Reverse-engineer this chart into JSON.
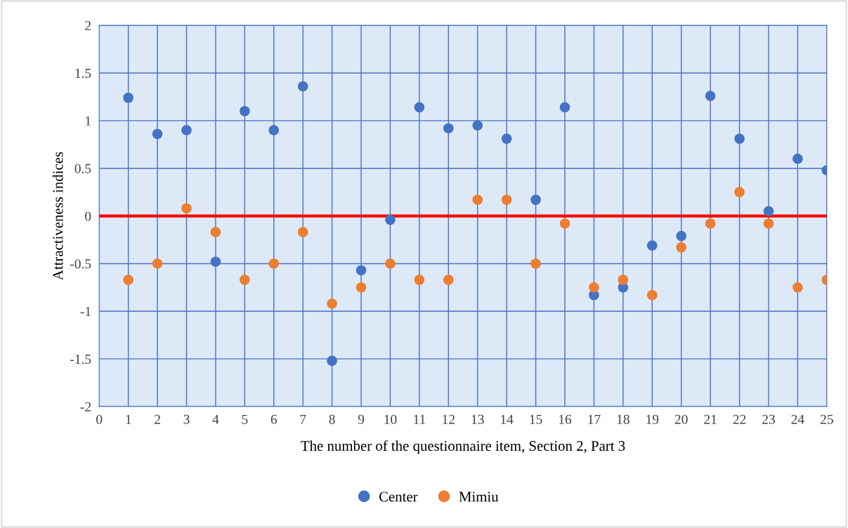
{
  "chart_data": {
    "type": "scatter",
    "xlabel": "The number of the questionnaire item, Section 2, Part 3",
    "ylabel": "Attractiveness indices",
    "x": [
      1,
      2,
      3,
      4,
      5,
      6,
      7,
      8,
      9,
      10,
      11,
      12,
      13,
      14,
      15,
      16,
      17,
      18,
      19,
      20,
      21,
      22,
      23,
      24,
      25
    ],
    "series": [
      {
        "name": "Center",
        "color": "#4472c4",
        "values": [
          1.24,
          0.86,
          0.9,
          -0.48,
          1.1,
          0.9,
          1.36,
          -1.52,
          -0.57,
          -0.04,
          1.14,
          0.92,
          0.95,
          0.81,
          0.17,
          1.14,
          -0.83,
          -0.75,
          -0.31,
          -0.21,
          1.26,
          0.81,
          0.05,
          0.6,
          0.48
        ]
      },
      {
        "name": "Mimiu",
        "color": "#ed7d31",
        "values": [
          -0.67,
          -0.5,
          0.08,
          -0.17,
          -0.67,
          -0.5,
          -0.17,
          -0.92,
          -0.75,
          -0.5,
          -0.67,
          -0.67,
          0.17,
          0.17,
          -0.5,
          -0.08,
          -0.75,
          -0.67,
          -0.83,
          -0.33,
          -0.08,
          0.25,
          -0.08,
          -0.75,
          -0.67
        ]
      }
    ],
    "xlim": [
      0,
      25
    ],
    "xticks": [
      0,
      1,
      2,
      3,
      4,
      5,
      6,
      7,
      8,
      9,
      10,
      11,
      12,
      13,
      14,
      15,
      16,
      17,
      18,
      19,
      20,
      21,
      22,
      23,
      24,
      25
    ],
    "ylim": [
      -2,
      2
    ],
    "yticks": [
      -2,
      -1.5,
      -1,
      -0.5,
      0,
      0.5,
      1,
      1.5,
      2
    ],
    "ref_lines": [
      {
        "axis": "y",
        "value": 0,
        "color": "#ff0000",
        "line_style": "solid"
      }
    ],
    "grid": true,
    "legend": "bottom",
    "marker": "circle"
  }
}
